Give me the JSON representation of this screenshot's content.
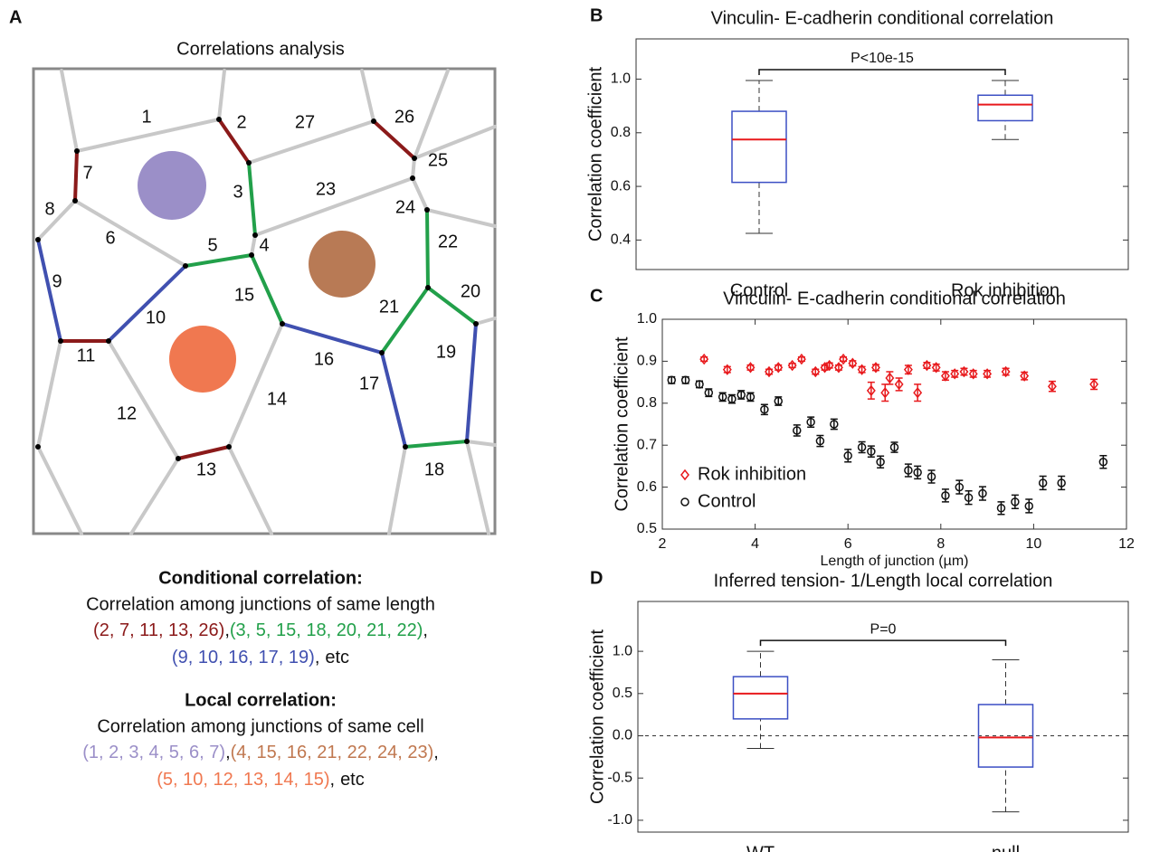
{
  "diagram": {
    "panel_label": "A",
    "title": "Correlations analysis",
    "junction_labels": [
      "1",
      "2",
      "3",
      "4",
      "5",
      "6",
      "7",
      "8",
      "9",
      "10",
      "11",
      "12",
      "13",
      "14",
      "15",
      "16",
      "17",
      "18",
      "19",
      "20",
      "21",
      "22",
      "23",
      "24",
      "25",
      "26",
      "27"
    ],
    "conditional": {
      "heading": "Conditional correlation:",
      "text": "Correlation among junctions of same length",
      "groups": [
        "(2, 7, 11, 13, 26)",
        "(3, 5, 15, 18, 20, 21, 22)",
        "(9, 10, 16, 17, 19)"
      ],
      "colors": [
        "#8b1a1a",
        "#22a04a",
        "#4050b0"
      ]
    },
    "local": {
      "heading": "Local correlation:",
      "text": "Correlation among junctions of same cell",
      "groups": [
        "(1, 2, 3, 4, 5, 6, 7)",
        "(4, 15, 16, 21, 22, 24, 23)",
        "(5, 10, 12, 13, 14, 15)"
      ],
      "colors": [
        "#9b8fc8",
        "#c07850",
        "#f07850"
      ]
    },
    "separator": ",",
    "ending": "etc"
  },
  "chart_data": [
    {
      "type": "box",
      "panel_label": "B",
      "title": "Vinculin- E-cadherin conditional correlation",
      "y_label": "Correlation coefficient",
      "categories": [
        "Control",
        "Rok inhibition"
      ],
      "boxes": [
        {
          "low": 0.425,
          "q1": 0.615,
          "median": 0.775,
          "q3": 0.88,
          "high": 0.995
        },
        {
          "low": 0.775,
          "q1": 0.845,
          "median": 0.905,
          "q3": 0.94,
          "high": 0.995
        }
      ],
      "box_color": "#3b4fc4",
      "median_color": "#e8191c",
      "annotation": "P<10e-15",
      "ylim": [
        0.29,
        1.15
      ],
      "yticks": [
        0.4,
        0.6,
        0.8,
        {
          "value": 1,
          "label": "1.0"
        }
      ]
    },
    {
      "type": "errorbar",
      "panel_label": "C",
      "title": "Vinculin- E-cadherin conditional correlation",
      "y_label": "Correlation coefficient",
      "x_label": "Length of junction (µm)",
      "series": [
        {
          "name": "Rok inhibition",
          "color": "#e8191c",
          "marker": "diamond",
          "x": [
            2.9,
            3.4,
            3.9,
            4.3,
            4.5,
            4.8,
            5.0,
            5.3,
            5.5,
            5.6,
            5.8,
            5.9,
            6.1,
            6.3,
            6.5,
            6.6,
            6.8,
            6.9,
            7.1,
            7.3,
            7.5,
            7.7,
            7.9,
            8.1,
            8.3,
            8.5,
            8.7,
            9.0,
            9.4,
            9.8,
            10.4,
            11.3
          ],
          "values": [
            0.905,
            0.88,
            0.885,
            0.875,
            0.885,
            0.89,
            0.905,
            0.875,
            0.885,
            0.89,
            0.885,
            0.905,
            0.895,
            0.88,
            0.83,
            0.885,
            0.825,
            0.86,
            0.845,
            0.88,
            0.825,
            0.89,
            0.885,
            0.865,
            0.87,
            0.875,
            0.87,
            0.87,
            0.875,
            0.865,
            0.84,
            0.845
          ],
          "errors": [
            0.005,
            0.007,
            0.006,
            0.006,
            0.006,
            0.005,
            0.005,
            0.006,
            0.006,
            0.006,
            0.006,
            0.005,
            0.006,
            0.007,
            0.02,
            0.007,
            0.02,
            0.015,
            0.015,
            0.01,
            0.02,
            0.007,
            0.008,
            0.01,
            0.008,
            0.008,
            0.008,
            0.008,
            0.008,
            0.009,
            0.012,
            0.012
          ]
        },
        {
          "name": "Control",
          "color": "#111111",
          "marker": "circle",
          "x": [
            2.2,
            2.5,
            2.8,
            3.0,
            3.3,
            3.5,
            3.7,
            3.9,
            4.2,
            4.5,
            4.9,
            5.2,
            5.4,
            5.7,
            6.0,
            6.3,
            6.5,
            6.7,
            7.0,
            7.3,
            7.5,
            7.8,
            8.1,
            8.4,
            8.6,
            8.9,
            9.3,
            9.6,
            9.9,
            10.2,
            10.6,
            11.5
          ],
          "values": [
            0.855,
            0.855,
            0.845,
            0.825,
            0.815,
            0.81,
            0.82,
            0.815,
            0.785,
            0.805,
            0.735,
            0.755,
            0.71,
            0.75,
            0.675,
            0.695,
            0.685,
            0.66,
            0.695,
            0.64,
            0.635,
            0.625,
            0.58,
            0.6,
            0.575,
            0.585,
            0.55,
            0.565,
            0.555,
            0.61,
            0.61,
            0.66
          ],
          "errors": [
            0.008,
            0.008,
            0.008,
            0.009,
            0.01,
            0.01,
            0.01,
            0.01,
            0.012,
            0.01,
            0.013,
            0.012,
            0.013,
            0.012,
            0.015,
            0.013,
            0.013,
            0.014,
            0.012,
            0.015,
            0.015,
            0.015,
            0.015,
            0.016,
            0.016,
            0.016,
            0.015,
            0.016,
            0.016,
            0.016,
            0.016,
            0.015
          ]
        }
      ],
      "xlim": [
        2,
        12
      ],
      "xticks": [
        2,
        4,
        6,
        8,
        10,
        12
      ],
      "ylim": [
        0.5,
        1
      ],
      "yticks": [
        0.5,
        0.6,
        0.7,
        0.8,
        0.9,
        {
          "value": 1,
          "label": "1.0"
        }
      ],
      "legend": "lower left"
    },
    {
      "type": "box",
      "panel_label": "D",
      "title": "Inferred tension- 1/Length local correlation",
      "y_label": "Correlation coefficient",
      "categories": [
        "WT",
        "null"
      ],
      "boxes": [
        {
          "low": -0.15,
          "q1": 0.2,
          "median": 0.5,
          "q3": 0.7,
          "high": 1.0
        },
        {
          "low": -0.9,
          "q1": -0.37,
          "median": -0.02,
          "q3": 0.37,
          "high": 0.9
        }
      ],
      "box_color": "#3b4fc4",
      "median_color": "#e8191c",
      "annotation": "P=0",
      "reference_line": 0,
      "ylim": [
        -1.14,
        1.59
      ],
      "yticks": [
        {
          "value": -1,
          "label": "-1.0"
        },
        -0.5,
        {
          "value": 0,
          "label": "0.0"
        },
        0.5,
        {
          "value": 1,
          "label": "1.0"
        }
      ]
    }
  ]
}
